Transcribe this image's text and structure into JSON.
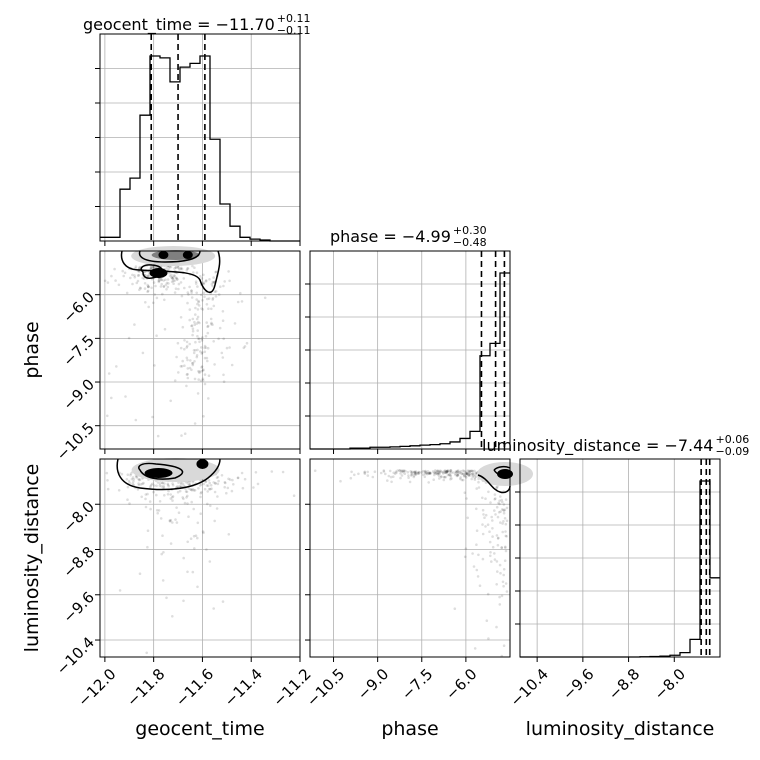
{
  "chart_data": {
    "type": "corner",
    "parameters": [
      "geocent_time",
      "phase",
      "luminosity_distance"
    ],
    "axis_labels": {
      "geocent_time": "geocent_time",
      "phase": "phase",
      "luminosity_distance": "luminosity_distance"
    },
    "ranges": {
      "geocent_time": [
        -12.02,
        -11.2
      ],
      "phase": [
        -11.3,
        -4.5
      ],
      "luminosity_distance": [
        -10.7,
        -7.2
      ]
    },
    "ticks": {
      "geocent_time": [
        "−12.0",
        "−11.8",
        "−11.6",
        "−11.4",
        "−11.2"
      ],
      "geocent_time_values": [
        -12.0,
        -11.8,
        -11.6,
        -11.4,
        -11.2
      ],
      "phase": [
        "−10.5",
        "−9.0",
        "−7.5",
        "−6.0"
      ],
      "phase_values": [
        -10.5,
        -9.0,
        -7.5,
        -6.0
      ],
      "luminosity_distance": [
        "−10.4",
        "−9.6",
        "−8.8",
        "−8.0"
      ],
      "luminosity_distance_values": [
        -10.4,
        -9.6,
        -8.8,
        -8.0
      ]
    },
    "titles": {
      "geocent_time": {
        "text": "geocent_time = −11.70",
        "sup": "+0.11",
        "sub": "−0.11"
      },
      "phase": {
        "text": "phase = −4.99",
        "sup": "+0.30",
        "sub": "−0.48"
      },
      "luminosity_distance": {
        "text": "luminosity_distance = −7.44",
        "sup": "+0.06",
        "sub": "−0.09"
      }
    },
    "quantiles": {
      "geocent_time": [
        -11.81,
        -11.7,
        -11.59
      ],
      "phase": [
        -5.47,
        -4.99,
        -4.69
      ],
      "luminosity_distance": [
        -7.53,
        -7.44,
        -7.38
      ]
    },
    "histograms": {
      "geocent_time": {
        "edges": [
          -12.02,
          -11.979,
          -11.938,
          -11.897,
          -11.856,
          -11.815,
          -11.774,
          -11.733,
          -11.692,
          -11.651,
          -11.61,
          -11.569,
          -11.528,
          -11.487,
          -11.446,
          -11.405,
          -11.364,
          -11.323,
          -11.282,
          -11.241,
          -11.2
        ],
        "counts": [
          0.02,
          0.02,
          0.28,
          0.34,
          0.68,
          1.0,
          0.99,
          0.86,
          0.94,
          0.96,
          1.0,
          0.55,
          0.2,
          0.08,
          0.02,
          0.01,
          0.005,
          0.0,
          0.0,
          0.0
        ]
      },
      "phase": {
        "edges": [
          -11.3,
          -10.96,
          -10.62,
          -10.28,
          -9.94,
          -9.6,
          -9.26,
          -8.92,
          -8.58,
          -8.24,
          -7.9,
          -7.56,
          -7.22,
          -6.88,
          -6.54,
          -6.2,
          -5.86,
          -5.52,
          -5.18,
          -4.84,
          -4.5
        ],
        "counts": [
          0.0,
          0.0,
          0.0,
          0.0,
          0.005,
          0.005,
          0.01,
          0.01,
          0.012,
          0.015,
          0.018,
          0.022,
          0.025,
          0.03,
          0.04,
          0.06,
          0.1,
          0.53,
          0.6,
          1.0
        ]
      },
      "luminosity_distance": {
        "edges": [
          -10.7,
          -10.525,
          -10.35,
          -10.175,
          -10.0,
          -9.825,
          -9.65,
          -9.475,
          -9.3,
          -9.125,
          -8.95,
          -8.775,
          -8.6,
          -8.425,
          -8.25,
          -8.075,
          -7.9,
          -7.725,
          -7.55,
          -7.375,
          -7.2
        ],
        "counts": [
          0.0,
          0.0,
          0.0,
          0.0,
          0.0,
          0.0,
          0.0,
          0.0,
          0.0,
          0.0,
          0.0,
          0.0,
          0.001,
          0.003,
          0.005,
          0.01,
          0.025,
          0.1,
          1.0,
          0.45
        ]
      }
    },
    "grid": true
  }
}
